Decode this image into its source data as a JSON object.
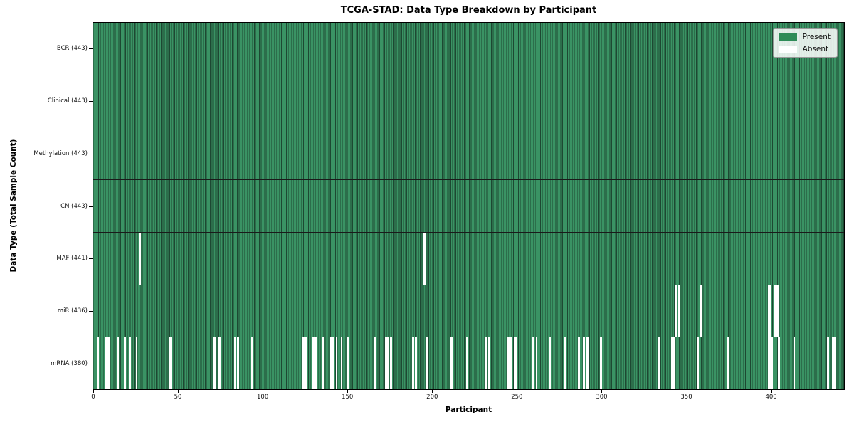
{
  "colors": {
    "present": "#3a9364",
    "present_solid": "#2e8b57",
    "cell_edge": "#1d4832",
    "absent": "#ffffff",
    "row_divider": "#1a1a1a",
    "axis": "#000000"
  },
  "chart_data": {
    "type": "heatmap",
    "title": "TCGA-STAD: Data Type Breakdown by Participant",
    "xlabel": "Participant",
    "ylabel": "Data Type (Total Sample Count)",
    "legend": [
      "Present",
      "Absent"
    ],
    "legend_position": "upper right",
    "n_participants": 443,
    "x_range": [
      0,
      443
    ],
    "x_ticks": [
      0,
      50,
      100,
      150,
      200,
      250,
      300,
      350,
      400
    ],
    "grid": false,
    "cell_states": {
      "present": 1,
      "absent": 0
    },
    "rows": [
      {
        "label": "BCR (443)",
        "data_type": "BCR",
        "present_count": 443,
        "absent_participants": []
      },
      {
        "label": "Clinical (443)",
        "data_type": "Clinical",
        "present_count": 443,
        "absent_participants": []
      },
      {
        "label": "Methylation (443)",
        "data_type": "Methylation",
        "present_count": 443,
        "absent_participants": []
      },
      {
        "label": "CN (443)",
        "data_type": "CN",
        "present_count": 443,
        "absent_participants": []
      },
      {
        "label": "MAF (441)",
        "data_type": "MAF",
        "present_count": 441,
        "absent_participants": [
          27,
          195
        ]
      },
      {
        "label": "miR (436)",
        "data_type": "miR",
        "present_count": 436,
        "absent_participants": [
          343,
          345,
          358,
          398,
          399,
          402,
          403
        ]
      },
      {
        "label": "mRNA (380)",
        "data_type": "mRNA",
        "present_count": 380,
        "absent_participants": [
          2,
          7,
          8,
          9,
          14,
          18,
          21,
          25,
          45,
          71,
          74,
          83,
          85,
          93,
          123,
          124,
          125,
          129,
          130,
          131,
          135,
          140,
          141,
          143,
          146,
          150,
          166,
          172,
          173,
          175,
          188,
          190,
          196,
          211,
          220,
          231,
          233,
          244,
          245,
          246,
          248,
          249,
          259,
          261,
          269,
          278,
          286,
          289,
          291,
          299,
          333,
          341,
          342,
          356,
          374,
          398,
          399,
          400,
          404,
          413,
          433,
          436,
          437
        ]
      }
    ]
  }
}
